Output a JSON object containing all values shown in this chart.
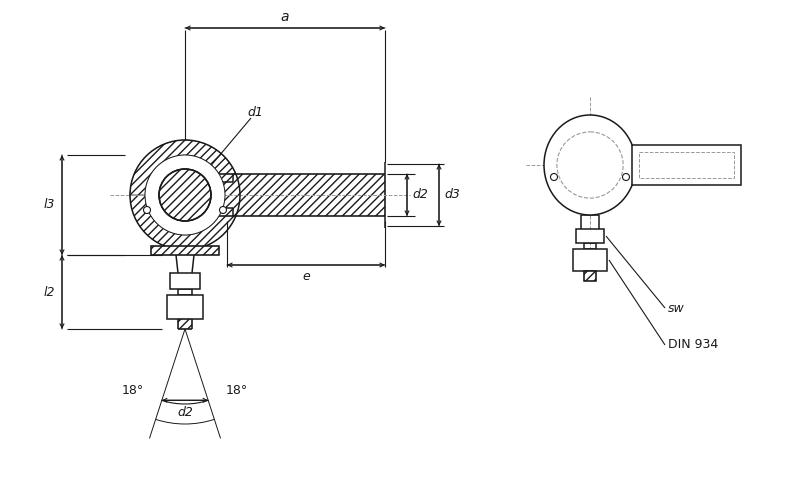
{
  "bg_color": "#ffffff",
  "line_color": "#1a1a1a",
  "dash_color": "#999999",
  "figsize": [
    8.0,
    4.8
  ],
  "dpi": 100,
  "labels": {
    "a": "a",
    "d1": "d1",
    "d2": "d2",
    "d3": "d3",
    "e": "e",
    "l2": "l2",
    "l3": "l3",
    "sw": "sw",
    "din934": "DIN 934",
    "angle1": "18°",
    "angle2": "18°"
  },
  "lw": 1.1,
  "lw_thin": 0.7,
  "lw_dim": 0.8
}
